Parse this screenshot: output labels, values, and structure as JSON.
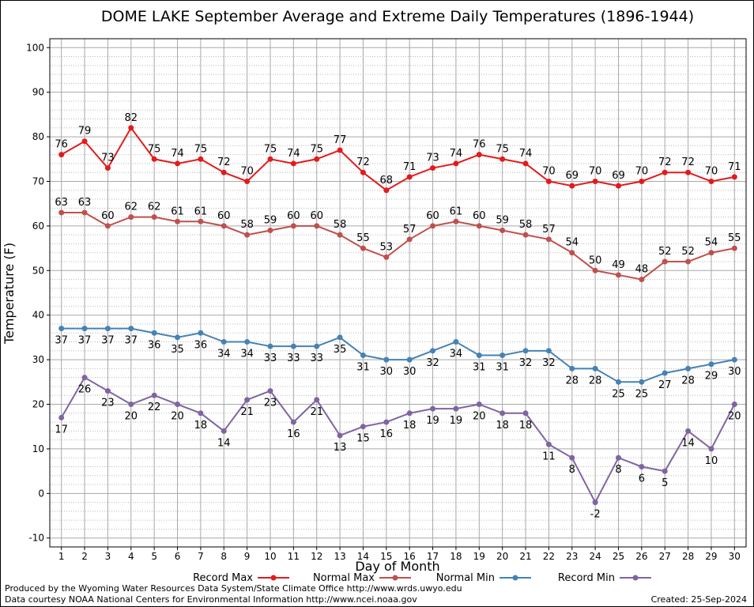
{
  "chart_data": {
    "type": "line",
    "title": "DOME LAKE September Average and Extreme Daily Temperatures (1896-1944)",
    "xlabel": "Day of Month",
    "ylabel": "Temperature (F)",
    "x": [
      1,
      2,
      3,
      4,
      5,
      6,
      7,
      8,
      9,
      10,
      11,
      12,
      13,
      14,
      15,
      16,
      17,
      18,
      19,
      20,
      21,
      22,
      23,
      24,
      25,
      26,
      27,
      28,
      29,
      30
    ],
    "xlim": [
      0.5,
      30.5
    ],
    "ylim": [
      -12,
      102
    ],
    "yticks": [
      -10,
      0,
      10,
      20,
      30,
      40,
      50,
      60,
      70,
      80,
      90,
      100
    ],
    "grid": true,
    "legend_position": "bottom",
    "series": [
      {
        "name": "Record Max",
        "color": "#e41a1c",
        "label_position": "above",
        "values": [
          76,
          79,
          73,
          82,
          75,
          74,
          75,
          72,
          70,
          75,
          74,
          75,
          77,
          72,
          68,
          71,
          73,
          74,
          76,
          75,
          74,
          70,
          69,
          70,
          69,
          70,
          72,
          72,
          70,
          71
        ]
      },
      {
        "name": "Normal Max",
        "color": "#c0504d",
        "label_position": "above",
        "values": [
          63,
          63,
          60,
          62,
          62,
          61,
          61,
          60,
          58,
          59,
          60,
          60,
          58,
          55,
          53,
          57,
          60,
          61,
          60,
          59,
          58,
          57,
          54,
          50,
          49,
          48,
          52,
          52,
          54,
          55
        ]
      },
      {
        "name": "Normal Min",
        "color": "#4682b4",
        "label_position": "below",
        "values": [
          37,
          37,
          37,
          37,
          36,
          35,
          36,
          34,
          34,
          33,
          33,
          33,
          35,
          31,
          30,
          30,
          32,
          34,
          31,
          31,
          32,
          32,
          28,
          28,
          25,
          25,
          27,
          28,
          29,
          30
        ]
      },
      {
        "name": "Record Min",
        "color": "#8064a2",
        "label_position": "below",
        "values": [
          17,
          26,
          23,
          20,
          22,
          20,
          18,
          14,
          21,
          23,
          16,
          21,
          13,
          15,
          16,
          18,
          19,
          19,
          20,
          18,
          18,
          11,
          8,
          -2,
          8,
          6,
          5,
          14,
          10,
          20
        ]
      }
    ]
  },
  "footer": {
    "produced_by": "Produced by the Wyoming Water Resources Data System/State Climate Office http://www.wrds.uwyo.edu",
    "data_courtesy": "Data courtesy NOAA National Centers for Environmental Information http://www.ncei.noaa.gov",
    "created": "Created: 25-Sep-2024"
  }
}
